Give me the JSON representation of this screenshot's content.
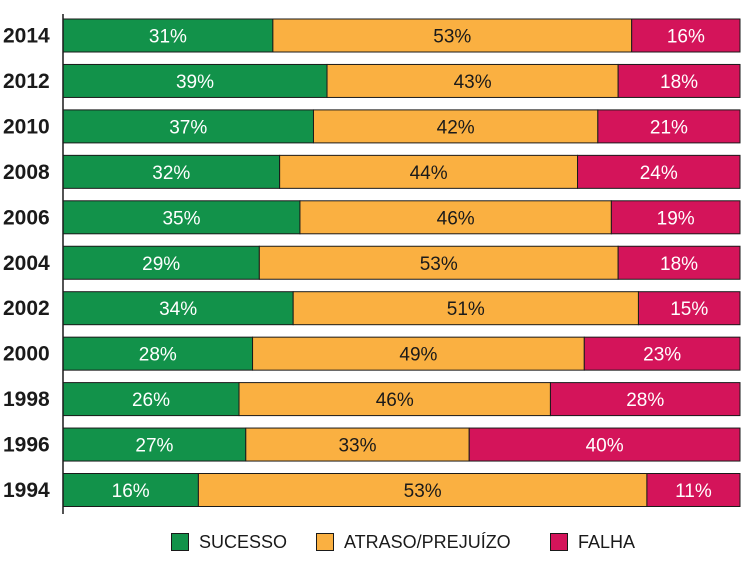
{
  "chart_data": {
    "type": "bar",
    "orientation": "horizontal",
    "stacked": true,
    "percent_stacked": true,
    "categories": [
      "2014",
      "2012",
      "2010",
      "2008",
      "2006",
      "2004",
      "2002",
      "2000",
      "1998",
      "1996",
      "1994"
    ],
    "series": [
      {
        "name": "SUCESSO",
        "color": "#12924a",
        "label_color": "#ffffff",
        "values": [
          31,
          39,
          37,
          32,
          35,
          29,
          34,
          28,
          26,
          27,
          16
        ],
        "labels": [
          "31%",
          "39%",
          "37%",
          "32%",
          "35%",
          "29%",
          "34%",
          "28%",
          "26%",
          "27%",
          "16%"
        ]
      },
      {
        "name": "ATRASO/PREJUÍZO",
        "color": "#fab041",
        "label_color": "#1a1a1a",
        "values": [
          53,
          43,
          42,
          44,
          46,
          53,
          51,
          49,
          46,
          33,
          53
        ],
        "labels": [
          "53%",
          "43%",
          "42%",
          "44%",
          "46%",
          "53%",
          "51%",
          "49%",
          "46%",
          "33%",
          "53%"
        ]
      },
      {
        "name": "FALHA",
        "color": "#d4145a",
        "label_color": "#ffffff",
        "values": [
          16,
          18,
          21,
          24,
          19,
          18,
          15,
          23,
          28,
          40,
          11
        ],
        "labels": [
          "16%",
          "18%",
          "21%",
          "24%",
          "19%",
          "18%",
          "15%",
          "23%",
          "28%",
          "40%",
          "11%"
        ]
      }
    ],
    "legend_position": "bottom",
    "grid": false
  }
}
